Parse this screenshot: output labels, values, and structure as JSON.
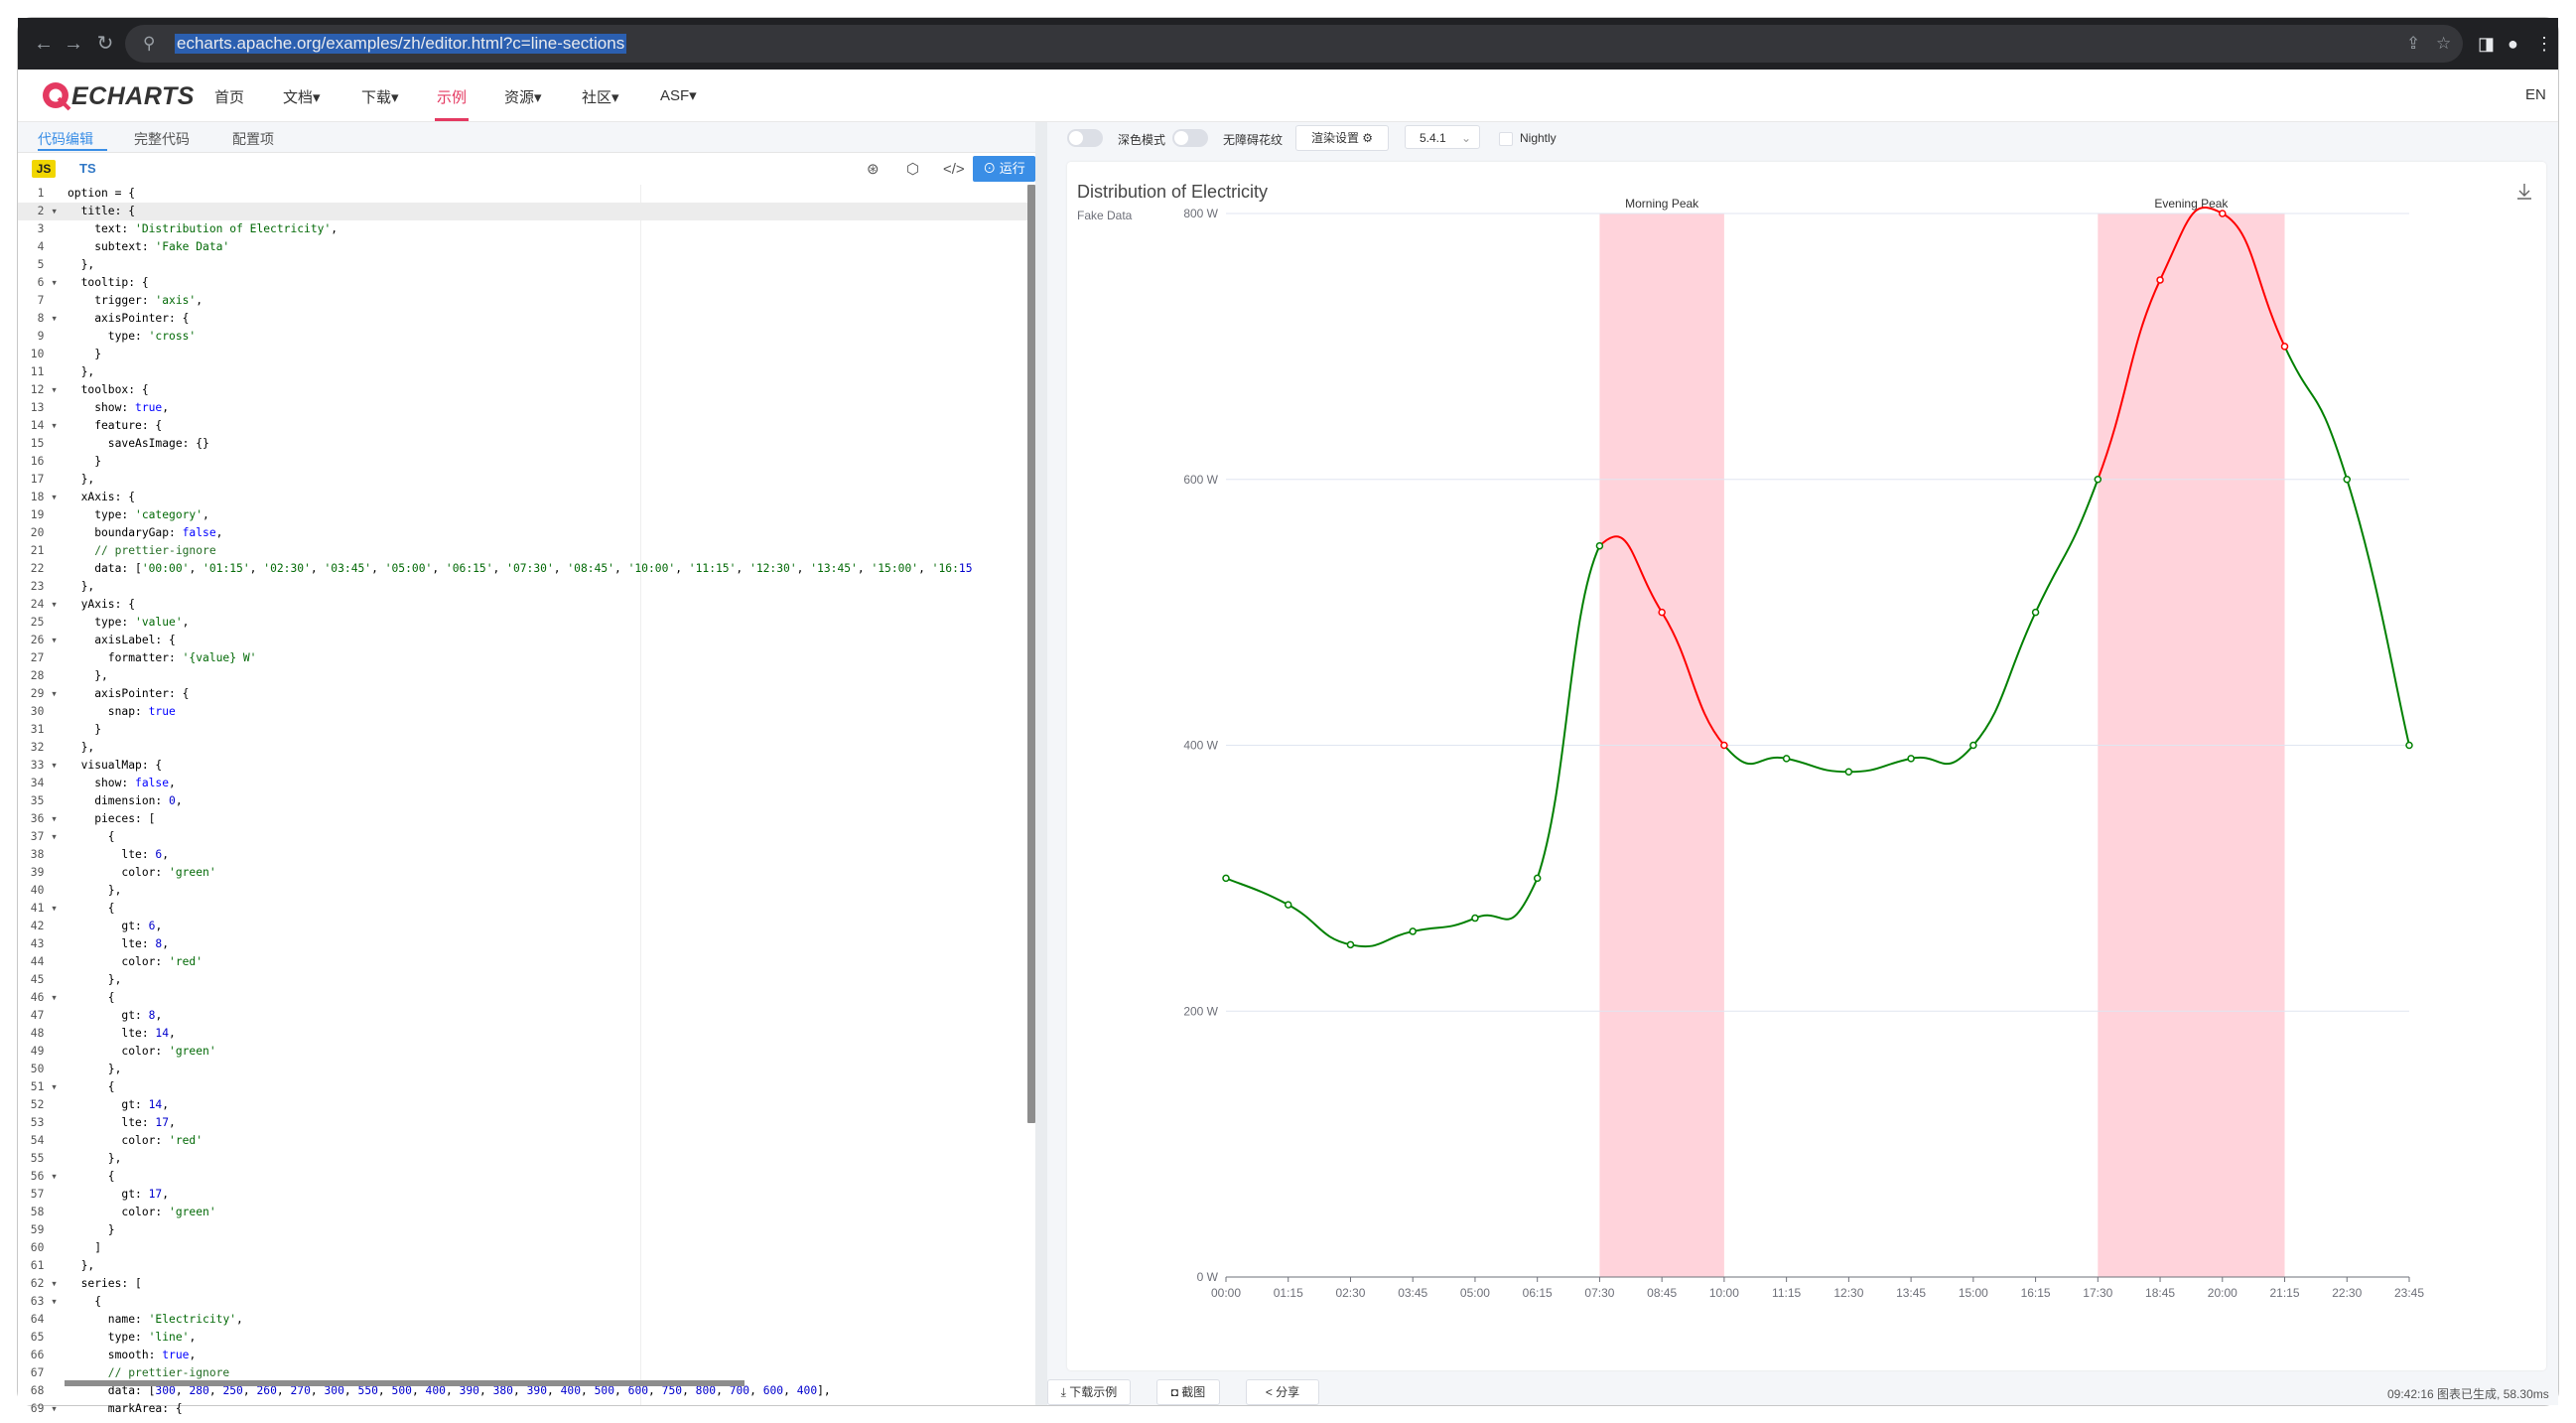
{
  "browser": {
    "url": "echarts.apache.org/examples/zh/editor.html?c=line-sections"
  },
  "header": {
    "logo_text": "ECHARTS",
    "nav": [
      "首页",
      "文档▾",
      "下载▾",
      "示例",
      "资源▾",
      "社区▾",
      "ASF▾"
    ],
    "active_nav": "示例",
    "lang": "EN"
  },
  "editor": {
    "tabs": [
      "代码编辑",
      "完整代码",
      "配置项"
    ],
    "js_label": "JS",
    "ts_label": "TS",
    "run_label": "⊙ 运行",
    "lines": [
      "option = {",
      "  title: {",
      "    text: 'Distribution of Electricity',",
      "    subtext: 'Fake Data'",
      "  },",
      "  tooltip: {",
      "    trigger: 'axis',",
      "    axisPointer: {",
      "      type: 'cross'",
      "    }",
      "  },",
      "  toolbox: {",
      "    show: true,",
      "    feature: {",
      "      saveAsImage: {}",
      "    }",
      "  },",
      "  xAxis: {",
      "    type: 'category',",
      "    boundaryGap: false,",
      "    // prettier-ignore",
      "    data: ['00:00', '01:15', '02:30', '03:45', '05:00', '06:15', '07:30', '08:45', '10:00', '11:15', '12:30', '13:45', '15:00', '16:15",
      "  },",
      "  yAxis: {",
      "    type: 'value',",
      "    axisLabel: {",
      "      formatter: '{value} W'",
      "    },",
      "    axisPointer: {",
      "      snap: true",
      "    }",
      "  },",
      "  visualMap: {",
      "    show: false,",
      "    dimension: 0,",
      "    pieces: [",
      "      {",
      "        lte: 6,",
      "        color: 'green'",
      "      },",
      "      {",
      "        gt: 6,",
      "        lte: 8,",
      "        color: 'red'",
      "      },",
      "      {",
      "        gt: 8,",
      "        lte: 14,",
      "        color: 'green'",
      "      },",
      "      {",
      "        gt: 14,",
      "        lte: 17,",
      "        color: 'red'",
      "      },",
      "      {",
      "        gt: 17,",
      "        color: 'green'",
      "      }",
      "    ]",
      "  },",
      "  series: [",
      "    {",
      "      name: 'Electricity',",
      "      type: 'line',",
      "      smooth: true,",
      "      // prettier-ignore",
      "      data: [300, 280, 250, 260, 270, 300, 550, 500, 400, 390, 380, 390, 400, 500, 600, 750, 800, 700, 600, 400],",
      "      markArea: {"
    ],
    "fold_lines": [
      2,
      6,
      8,
      12,
      14,
      18,
      24,
      26,
      29,
      33,
      36,
      37,
      41,
      46,
      51,
      56,
      62,
      63,
      69
    ],
    "highlight_line": 2
  },
  "preview": {
    "dark_mode_label": "深色模式",
    "a11y_label": "无障碍花纹",
    "render_settings_label": "渲染设置 ⚙",
    "version": "5.4.1",
    "nightly_label": "Nightly",
    "download_label": "⤓ 下载示例",
    "screenshot_label": "◘ 截图",
    "share_label": "< 分享",
    "status": "09:42:16   图表已生成, 58.30ms"
  },
  "chart_data": {
    "type": "line",
    "title": "Distribution of Electricity",
    "subtitle": "Fake Data",
    "categories": [
      "00:00",
      "01:15",
      "02:30",
      "03:45",
      "05:00",
      "06:15",
      "07:30",
      "08:45",
      "10:00",
      "11:15",
      "12:30",
      "13:45",
      "15:00",
      "16:15",
      "17:30",
      "18:45",
      "20:00",
      "21:15",
      "22:30",
      "23:45"
    ],
    "series": [
      {
        "values": [
          300,
          280,
          250,
          260,
          270,
          300,
          550,
          500,
          400,
          390,
          380,
          390,
          400,
          500,
          600,
          750,
          800,
          700,
          600,
          400
        ]
      }
    ],
    "ylim": [
      0,
      800
    ],
    "yticks": [
      0,
      200,
      400,
      600,
      800
    ],
    "ytick_labels": [
      "0 W",
      "200 W",
      "400 W",
      "600 W",
      "800 W"
    ],
    "mark_areas": [
      {
        "name": "Morning Peak",
        "from": "07:30",
        "to": "10:00"
      },
      {
        "name": "Evening Peak",
        "from": "17:30",
        "to": "21:15"
      }
    ],
    "piece_colors": {
      "normal": "#008000",
      "peak": "#ff0000",
      "area": "#ffd3db"
    },
    "grid": true
  }
}
